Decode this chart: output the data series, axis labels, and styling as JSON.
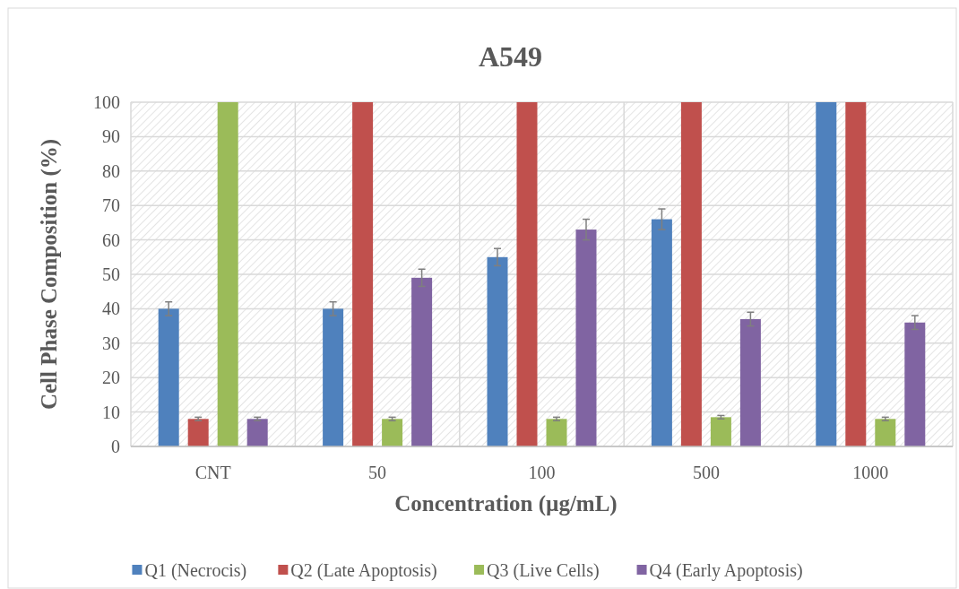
{
  "chart_data": {
    "type": "bar",
    "title": "A549",
    "xlabel": "Concentration (µg/mL)",
    "ylabel": "Cell Phase Composition (%)",
    "categories": [
      "CNT",
      "50",
      "100",
      "500",
      "1000"
    ],
    "series": [
      {
        "name": "Q1 (Necrocis)",
        "color": "#4f81bd",
        "values": [
          40,
          40,
          55,
          66,
          100
        ],
        "errors": [
          2,
          2,
          2.5,
          3,
          null
        ]
      },
      {
        "name": "Q2 (Late Apoptosis)",
        "color": "#c0504d",
        "values": [
          8,
          100,
          100,
          100,
          100
        ],
        "errors": [
          0.5,
          null,
          null,
          null,
          null
        ]
      },
      {
        "name": "Q3 (Live Cells)",
        "color": "#9bbb59",
        "values": [
          100,
          8,
          8,
          8.5,
          8
        ],
        "errors": [
          null,
          0.5,
          0.5,
          0.5,
          0.5
        ]
      },
      {
        "name": "Q4 (Early Apoptosis)",
        "color": "#8064a2",
        "values": [
          8,
          49,
          63,
          37,
          36
        ],
        "errors": [
          0.5,
          2.5,
          3,
          2,
          2
        ]
      }
    ],
    "ylim": [
      0,
      100
    ],
    "yticks": [
      0,
      10,
      20,
      30,
      40,
      50,
      60,
      70,
      80,
      90,
      100
    ],
    "grid": true,
    "legend": "bottom"
  }
}
